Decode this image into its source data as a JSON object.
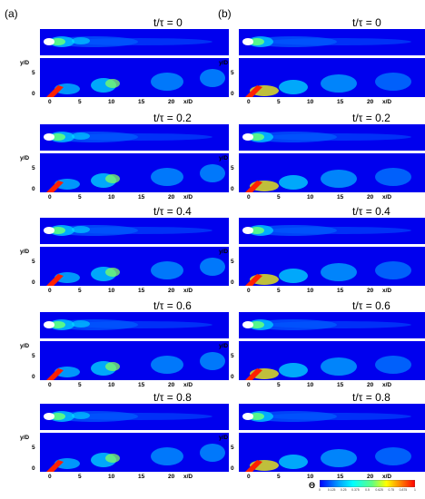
{
  "figure": {
    "columns": [
      {
        "label": "(a)",
        "times": [
          "t/τ = 0",
          "t/τ = 0.2",
          "t/τ = 0.4",
          "t/τ = 0.6",
          "t/τ = 0.8"
        ]
      },
      {
        "label": "(b)",
        "times": [
          "t/τ = 0",
          "t/τ = 0.2",
          "t/τ = 0.4",
          "t/τ = 0.6",
          "t/τ = 0.8"
        ]
      }
    ],
    "axes": {
      "ylabel": "y/D",
      "xlabel": "x/D",
      "yticks": [
        "0",
        "5"
      ],
      "xticks": [
        "0",
        "5",
        "10",
        "15",
        "20"
      ]
    },
    "colorbar": {
      "title": "Θ",
      "ticks": [
        "0",
        "0.125",
        "0.25",
        "0.375",
        "0.5",
        "0.625",
        "0.75",
        "0.875",
        "1"
      ],
      "colors": [
        "#0000ff",
        "#00a0ff",
        "#00ffff",
        "#60ff80",
        "#ffff00",
        "#ff8000",
        "#ff0000"
      ]
    }
  }
}
